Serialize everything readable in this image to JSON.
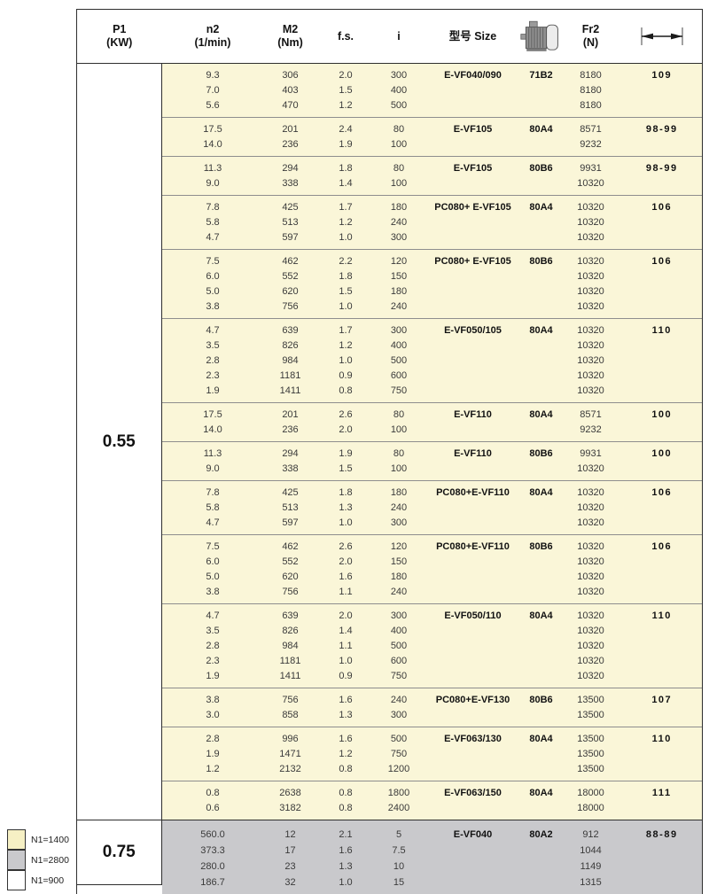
{
  "header": {
    "p1_l1": "P1",
    "p1_l2": "(KW)",
    "n2_l1": "n2",
    "n2_l2": "(1/min)",
    "m2_l1": "M2",
    "m2_l2": "(Nm)",
    "fs": "f.s.",
    "i": "i",
    "model": "型号 Size",
    "fr2_l1": "Fr2",
    "fr2_l2": "(N)",
    "icons": {
      "size_column": "motor-icon",
      "page_column": "dimension-arrow-icon"
    }
  },
  "colors": {
    "cream": "#FAF6D8",
    "gray": "#C9C9CC",
    "legend_yellow": "#F6F0C4",
    "legend_gray": "#C9C9CC",
    "legend_white": "#FFFFFF",
    "border": "#2E2E2E"
  },
  "sections": [
    {
      "p1": "0.55",
      "bg": "#FAF6D8",
      "groups": [
        {
          "model": "E-VF040/090",
          "size": "71B2",
          "page": "109",
          "rows": [
            [
              "9.3",
              "306",
              "2.0",
              "300",
              "8180"
            ],
            [
              "7.0",
              "403",
              "1.5",
              "400",
              "8180"
            ],
            [
              "5.6",
              "470",
              "1.2",
              "500",
              "8180"
            ]
          ]
        },
        {
          "model": "E-VF105",
          "size": "80A4",
          "page": "98-99",
          "rows": [
            [
              "17.5",
              "201",
              "2.4",
              "80",
              "8571"
            ],
            [
              "14.0",
              "236",
              "1.9",
              "100",
              "9232"
            ]
          ]
        },
        {
          "model": "E-VF105",
          "size": "80B6",
          "page": "98-99",
          "rows": [
            [
              "11.3",
              "294",
              "1.8",
              "80",
              "9931"
            ],
            [
              "9.0",
              "338",
              "1.4",
              "100",
              "10320"
            ]
          ]
        },
        {
          "model": "PC080+ E-VF105",
          "size": "80A4",
          "page": "106",
          "rows": [
            [
              "7.8",
              "425",
              "1.7",
              "180",
              "10320"
            ],
            [
              "5.8",
              "513",
              "1.2",
              "240",
              "10320"
            ],
            [
              "4.7",
              "597",
              "1.0",
              "300",
              "10320"
            ]
          ]
        },
        {
          "model": "PC080+ E-VF105",
          "size": "80B6",
          "page": "106",
          "rows": [
            [
              "7.5",
              "462",
              "2.2",
              "120",
              "10320"
            ],
            [
              "6.0",
              "552",
              "1.8",
              "150",
              "10320"
            ],
            [
              "5.0",
              "620",
              "1.5",
              "180",
              "10320"
            ],
            [
              "3.8",
              "756",
              "1.0",
              "240",
              "10320"
            ]
          ]
        },
        {
          "model": "E-VF050/105",
          "size": "80A4",
          "page": "110",
          "rows": [
            [
              "4.7",
              "639",
              "1.7",
              "300",
              "10320"
            ],
            [
              "3.5",
              "826",
              "1.2",
              "400",
              "10320"
            ],
            [
              "2.8",
              "984",
              "1.0",
              "500",
              "10320"
            ],
            [
              "2.3",
              "1181",
              "0.9",
              "600",
              "10320"
            ],
            [
              "1.9",
              "1411",
              "0.8",
              "750",
              "10320"
            ]
          ]
        },
        {
          "model": "E-VF110",
          "size": "80A4",
          "page": "100",
          "rows": [
            [
              "17.5",
              "201",
              "2.6",
              "80",
              "8571"
            ],
            [
              "14.0",
              "236",
              "2.0",
              "100",
              "9232"
            ]
          ]
        },
        {
          "model": "E-VF110",
          "size": "80B6",
          "page": "100",
          "rows": [
            [
              "11.3",
              "294",
              "1.9",
              "80",
              "9931"
            ],
            [
              "9.0",
              "338",
              "1.5",
              "100",
              "10320"
            ]
          ]
        },
        {
          "model": "PC080+E-VF110",
          "size": "80A4",
          "page": "106",
          "rows": [
            [
              "7.8",
              "425",
              "1.8",
              "180",
              "10320"
            ],
            [
              "5.8",
              "513",
              "1.3",
              "240",
              "10320"
            ],
            [
              "4.7",
              "597",
              "1.0",
              "300",
              "10320"
            ]
          ]
        },
        {
          "model": "PC080+E-VF110",
          "size": "80B6",
          "page": "106",
          "rows": [
            [
              "7.5",
              "462",
              "2.6",
              "120",
              "10320"
            ],
            [
              "6.0",
              "552",
              "2.0",
              "150",
              "10320"
            ],
            [
              "5.0",
              "620",
              "1.6",
              "180",
              "10320"
            ],
            [
              "3.8",
              "756",
              "1.1",
              "240",
              "10320"
            ]
          ]
        },
        {
          "model": "E-VF050/110",
          "size": "80A4",
          "page": "110",
          "rows": [
            [
              "4.7",
              "639",
              "2.0",
              "300",
              "10320"
            ],
            [
              "3.5",
              "826",
              "1.4",
              "400",
              "10320"
            ],
            [
              "2.8",
              "984",
              "1.1",
              "500",
              "10320"
            ],
            [
              "2.3",
              "1181",
              "1.0",
              "600",
              "10320"
            ],
            [
              "1.9",
              "1411",
              "0.9",
              "750",
              "10320"
            ]
          ]
        },
        {
          "model": "PC080+E-VF130",
          "size": "80B6",
          "page": "107",
          "rows": [
            [
              "3.8",
              "756",
              "1.6",
              "240",
              "13500"
            ],
            [
              "3.0",
              "858",
              "1.3",
              "300",
              "13500"
            ]
          ]
        },
        {
          "model": "E-VF063/130",
          "size": "80A4",
          "page": "110",
          "rows": [
            [
              "2.8",
              "996",
              "1.6",
              "500",
              "13500"
            ],
            [
              "1.9",
              "1471",
              "1.2",
              "750",
              "13500"
            ],
            [
              "1.2",
              "2132",
              "0.8",
              "1200",
              "13500"
            ]
          ]
        },
        {
          "model": "E-VF063/150",
          "size": "80A4",
          "page": "111",
          "rows": [
            [
              "0.8",
              "2638",
              "0.8",
              "1800",
              "18000"
            ],
            [
              "0.6",
              "3182",
              "0.8",
              "2400",
              "18000"
            ]
          ]
        }
      ]
    },
    {
      "p1": "0.75",
      "bg": "#C9C9CC",
      "groups": [
        {
          "model": "E-VF040",
          "size": "80A2",
          "page": "88-89",
          "rows": [
            [
              "560.0",
              "12",
              "2.1",
              "5",
              "912"
            ],
            [
              "373.3",
              "17",
              "1.6",
              "7.5",
              "1044"
            ],
            [
              "280.0",
              "23",
              "1.3",
              "10",
              "1149"
            ],
            [
              "186.7",
              "32",
              "1.0",
              "15",
              "1315"
            ]
          ]
        }
      ]
    }
  ],
  "legend": [
    {
      "label": "N1=1400",
      "color": "#F6F0C4"
    },
    {
      "label": "N1=2800",
      "color": "#C9C9CC"
    },
    {
      "label": "N1=900",
      "color": "#FFFFFF"
    }
  ]
}
